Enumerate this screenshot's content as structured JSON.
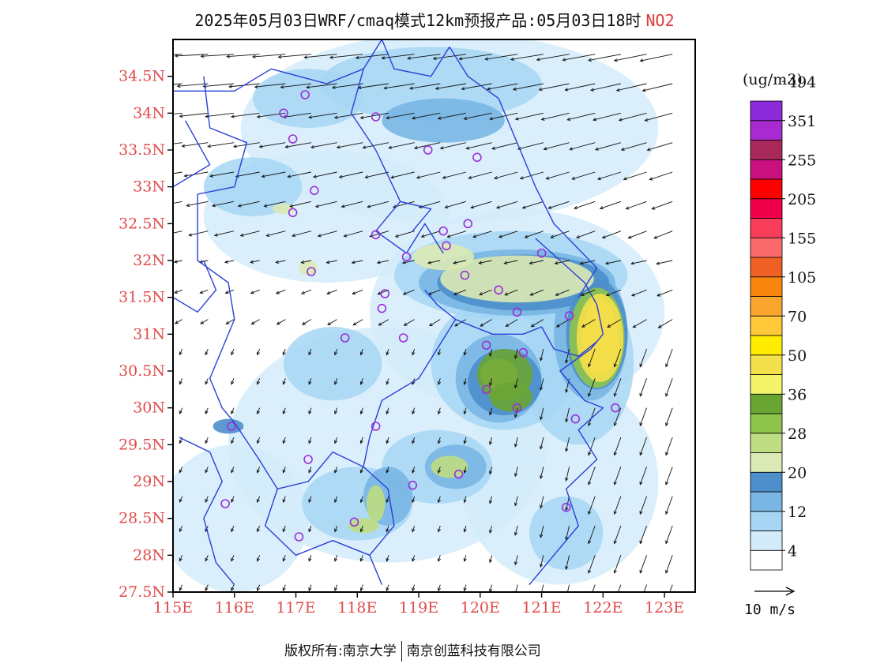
{
  "title": {
    "text": "2025年05月03日WRF/cmaq模式12km预报产品:05月03日18时",
    "species": "NO2"
  },
  "map": {
    "lon_range": [
      115,
      123.5
    ],
    "lat_range": [
      27.5,
      35
    ],
    "lat_ticks": [
      {
        "value": 34.5,
        "label": "34.5N"
      },
      {
        "value": 34,
        "label": "34N"
      },
      {
        "value": 33.5,
        "label": "33.5N"
      },
      {
        "value": 33,
        "label": "33N"
      },
      {
        "value": 32.5,
        "label": "32.5N"
      },
      {
        "value": 32,
        "label": "32N"
      },
      {
        "value": 31.5,
        "label": "31.5N"
      },
      {
        "value": 31,
        "label": "31N"
      },
      {
        "value": 30.5,
        "label": "30.5N"
      },
      {
        "value": 30,
        "label": "30N"
      },
      {
        "value": 29.5,
        "label": "29.5N"
      },
      {
        "value": 29,
        "label": "29N"
      },
      {
        "value": 28.5,
        "label": "28.5N"
      },
      {
        "value": 28,
        "label": "28N"
      },
      {
        "value": 27.5,
        "label": "27.5N"
      }
    ],
    "lon_ticks": [
      {
        "value": 115,
        "label": "115E"
      },
      {
        "value": 116,
        "label": "116E"
      },
      {
        "value": 117,
        "label": "117E"
      },
      {
        "value": 118,
        "label": "118E"
      },
      {
        "value": 119,
        "label": "119E"
      },
      {
        "value": 120,
        "label": "120E"
      },
      {
        "value": 121,
        "label": "121E"
      },
      {
        "value": 122,
        "label": "122E"
      },
      {
        "value": 123,
        "label": "123E"
      }
    ],
    "colors": {
      "boundary": "#2a3fd8",
      "station": "#9b30d8",
      "axis_label": "#e24a4a"
    },
    "blobs": [
      {
        "lon": 120.6,
        "lat": 31.75,
        "rx": 1.25,
        "ry": 0.32,
        "level": 5
      },
      {
        "lon": 119.4,
        "lat": 32.05,
        "rx": 0.5,
        "ry": 0.18,
        "level": 5
      },
      {
        "lon": 121.95,
        "lat": 30.95,
        "rx": 0.38,
        "ry": 0.6,
        "level": 10
      },
      {
        "lon": 120.4,
        "lat": 30.45,
        "rx": 0.45,
        "ry": 0.35,
        "level": 8
      },
      {
        "lon": 120.5,
        "lat": 30.15,
        "rx": 0.35,
        "ry": 0.2,
        "level": 8
      },
      {
        "lon": 119.5,
        "lat": 29.2,
        "rx": 0.3,
        "ry": 0.15,
        "level": 6
      },
      {
        "lon": 118.1,
        "lat": 28.4,
        "rx": 0.25,
        "ry": 0.1,
        "level": 6
      },
      {
        "lon": 118.3,
        "lat": 28.7,
        "rx": 0.15,
        "ry": 0.25,
        "level": 6
      },
      {
        "lon": 117.2,
        "lat": 31.9,
        "rx": 0.15,
        "ry": 0.1,
        "level": 5
      },
      {
        "lon": 115.9,
        "lat": 29.75,
        "rx": 0.25,
        "ry": 0.1,
        "level": 4
      },
      {
        "lon": 116.8,
        "lat": 32.7,
        "rx": 0.18,
        "ry": 0.07,
        "level": 5
      }
    ],
    "stations": [
      {
        "lon": 117.15,
        "lat": 34.25
      },
      {
        "lon": 116.8,
        "lat": 34.0
      },
      {
        "lon": 118.3,
        "lat": 33.95
      },
      {
        "lon": 116.95,
        "lat": 33.65
      },
      {
        "lon": 119.15,
        "lat": 33.5
      },
      {
        "lon": 119.95,
        "lat": 33.4
      },
      {
        "lon": 117.3,
        "lat": 32.95
      },
      {
        "lon": 116.95,
        "lat": 32.65
      },
      {
        "lon": 118.3,
        "lat": 32.35
      },
      {
        "lon": 119.4,
        "lat": 32.4
      },
      {
        "lon": 119.8,
        "lat": 32.5
      },
      {
        "lon": 119.45,
        "lat": 32.2
      },
      {
        "lon": 118.8,
        "lat": 32.05
      },
      {
        "lon": 121.0,
        "lat": 32.1
      },
      {
        "lon": 117.25,
        "lat": 31.85
      },
      {
        "lon": 119.75,
        "lat": 31.8
      },
      {
        "lon": 120.3,
        "lat": 31.6
      },
      {
        "lon": 118.45,
        "lat": 31.55
      },
      {
        "lon": 120.6,
        "lat": 31.3
      },
      {
        "lon": 118.4,
        "lat": 31.35
      },
      {
        "lon": 121.45,
        "lat": 31.25
      },
      {
        "lon": 117.8,
        "lat": 30.95
      },
      {
        "lon": 118.75,
        "lat": 30.95
      },
      {
        "lon": 120.1,
        "lat": 30.85
      },
      {
        "lon": 120.7,
        "lat": 30.75
      },
      {
        "lon": 120.1,
        "lat": 30.25
      },
      {
        "lon": 120.6,
        "lat": 30.0
      },
      {
        "lon": 121.55,
        "lat": 29.85
      },
      {
        "lon": 122.2,
        "lat": 30.0
      },
      {
        "lon": 115.95,
        "lat": 29.75
      },
      {
        "lon": 118.3,
        "lat": 29.75
      },
      {
        "lon": 117.2,
        "lat": 29.3
      },
      {
        "lon": 119.65,
        "lat": 29.1
      },
      {
        "lon": 118.9,
        "lat": 28.95
      },
      {
        "lon": 115.85,
        "lat": 28.7
      },
      {
        "lon": 121.4,
        "lat": 28.65
      },
      {
        "lon": 117.95,
        "lat": 28.45
      },
      {
        "lon": 117.05,
        "lat": 28.25
      }
    ]
  },
  "colorbar": {
    "unit": "(ug/m3)",
    "labels": [
      "4",
      "12",
      "20",
      "28",
      "36",
      "50",
      "70",
      "105",
      "155",
      "205",
      "255",
      "351",
      "494"
    ],
    "colors": [
      "#ffffff",
      "#d4ecfa",
      "#a6d6f4",
      "#79b6e3",
      "#4d8fcb",
      "#dbe9b4",
      "#bfdd82",
      "#8ec44b",
      "#6aa534",
      "#f4f46a",
      "#f4e04a",
      "#ffec00",
      "#ffc93a",
      "#faa52d",
      "#f8860d",
      "#ef6024",
      "#fa6a6a",
      "#f83c5a",
      "#f0004a",
      "#ff0000",
      "#c8107e",
      "#a8285a",
      "#a82ad0",
      "#8a2ad8"
    ]
  },
  "wind_reference": {
    "label": "10 m/s"
  },
  "footer": {
    "left": "版权所有:南京大学",
    "right": "南京创蓝科技有限公司"
  }
}
